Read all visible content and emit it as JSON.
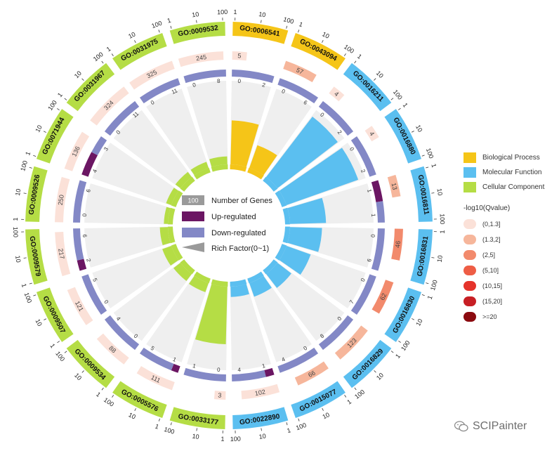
{
  "chart_data": {
    "type": "circos-go-enrichment",
    "scale_ticks": [
      "1",
      "10",
      "100"
    ],
    "terms": [
      {
        "id": "GO:0006541",
        "category": "BP",
        "count": 5,
        "up": 0,
        "down": 2,
        "rich": 0.55
      },
      {
        "id": "GO:0043094",
        "category": "BP",
        "count": 57,
        "up": 0,
        "down": 6,
        "rich": 0.3
      },
      {
        "id": "GO:0016211",
        "category": "MF",
        "count": 4,
        "up": 0,
        "down": 2,
        "rich": 0.95
      },
      {
        "id": "GO:0016880",
        "category": "MF",
        "count": 4,
        "up": 0,
        "down": 2,
        "rich": 0.95
      },
      {
        "id": "GO:0016811",
        "category": "MF",
        "count": 13,
        "up": 1,
        "down": 1,
        "rich": 0.45
      },
      {
        "id": "GO:0016831",
        "category": "MF",
        "count": 46,
        "up": 0,
        "down": 6,
        "rich": 0.4
      },
      {
        "id": "GO:0016830",
        "category": "MF",
        "count": 62,
        "up": 0,
        "down": 7,
        "rich": 0.32
      },
      {
        "id": "GO:0016829",
        "category": "MF",
        "count": 123,
        "up": 0,
        "down": 8,
        "rich": 0.22
      },
      {
        "id": "GO:0015077",
        "category": "MF",
        "count": 66,
        "up": 0,
        "down": 4,
        "rich": 0.18
      },
      {
        "id": "GO:0022890",
        "category": "MF",
        "count": 102,
        "up": 1,
        "down": 4,
        "rich": 0.13
      },
      {
        "id": "GO:0033177",
        "category": "CC",
        "count": 3,
        "up": 0,
        "down": 1,
        "rich": 0.72
      },
      {
        "id": "GO:0005576",
        "category": "CC",
        "count": 111,
        "up": 1,
        "down": 5,
        "rich": 0.12
      },
      {
        "id": "GO:0009534",
        "category": "CC",
        "count": 88,
        "up": 0,
        "down": 4,
        "rich": 0.11
      },
      {
        "id": "GO:0009507",
        "category": "CC",
        "count": 121,
        "up": 0,
        "down": 5,
        "rich": 0.12
      },
      {
        "id": "GO:0009579",
        "category": "CC",
        "count": 217,
        "up": 2,
        "down": 6,
        "rich": 0.1
      },
      {
        "id": "GO:0009526",
        "category": "CC",
        "count": 250,
        "up": 0,
        "down": 6,
        "rich": 0.05
      },
      {
        "id": "GO:0071944",
        "category": "CC",
        "count": 136,
        "up": 4,
        "down": 3,
        "rich": 0.07
      },
      {
        "id": "GO:0031967",
        "category": "CC",
        "count": 324,
        "up": 0,
        "down": 11,
        "rich": 0.08
      },
      {
        "id": "GO:0031975",
        "category": "CC",
        "count": 325,
        "up": 0,
        "down": 11,
        "rich": 0.08
      },
      {
        "id": "GO:0009532",
        "category": "CC",
        "count": 245,
        "up": 0,
        "down": 8,
        "rich": 0.1
      }
    ],
    "count_color_bin": [
      0,
      1,
      0,
      0,
      1,
      2,
      2,
      1,
      1,
      0,
      0,
      0,
      0,
      0,
      0,
      0,
      0,
      0,
      0,
      0
    ],
    "center_legend": {
      "number_of_genes": "Number of Genes",
      "number_sample": "100",
      "up_regulated": "Up-regulated",
      "down_regulated": "Down-regulated",
      "rich_factor": "Rich Factor(0~1)"
    },
    "category_legend": [
      {
        "key": "BP",
        "label": "Biological Process",
        "color": "#f5c518"
      },
      {
        "key": "MF",
        "label": "Molecular Function",
        "color": "#5bbff0"
      },
      {
        "key": "CC",
        "label": "Cellular Component",
        "color": "#b5dd45"
      }
    ],
    "qvalue_legend": {
      "title": "-log10(Qvalue)",
      "bins": [
        {
          "label": "(0,1.3]",
          "color": "#fbe1d8"
        },
        {
          "label": "(1.3,2]",
          "color": "#f6b69b"
        },
        {
          "label": "(2,5]",
          "color": "#f28a6c"
        },
        {
          "label": "(5,10]",
          "color": "#ee5d45"
        },
        {
          "label": "(10,15]",
          "color": "#e5332b"
        },
        {
          "label": "(15,20]",
          "color": "#c71f24"
        },
        {
          "label": ">=20",
          "color": "#8b0a0f"
        }
      ]
    },
    "colors": {
      "up": "#6b1663",
      "down": "#8388c6",
      "track_bg": "#eeeeee",
      "rich_band": "#efefef"
    }
  },
  "watermark": "SCIPainter"
}
